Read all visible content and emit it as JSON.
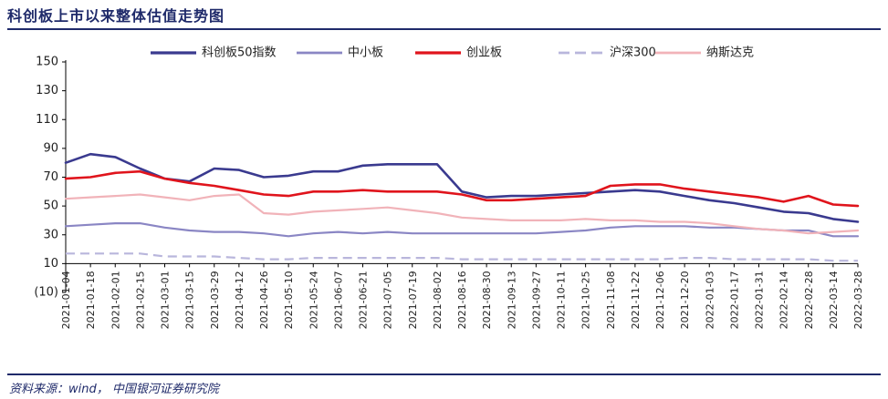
{
  "title": "科创板上市以来整体估值走势图",
  "source": "资料来源：wind， 中国银河证券研究院",
  "chart_data": {
    "type": "line",
    "ylim": [
      -10,
      150
    ],
    "yticks": [
      150,
      130,
      110,
      90,
      70,
      50,
      30,
      10,
      -10
    ],
    "ytick_labels": [
      "150",
      "130",
      "110",
      "90",
      "70",
      "50",
      "30",
      "10",
      "(10)"
    ],
    "legend_position": "top",
    "x_labels": [
      "2021-01-04",
      "2021-01-18",
      "2021-02-01",
      "2021-02-15",
      "2021-03-01",
      "2021-03-15",
      "2021-03-29",
      "2021-04-12",
      "2021-04-26",
      "2021-05-10",
      "2021-05-24",
      "2021-06-07",
      "2021-06-21",
      "2021-07-05",
      "2021-07-19",
      "2021-08-02",
      "2021-08-16",
      "2021-08-30",
      "2021-09-13",
      "2021-09-27",
      "2021-10-11",
      "2021-10-25",
      "2021-11-08",
      "2021-11-22",
      "2021-12-06",
      "2021-12-20",
      "2022-01-03",
      "2022-01-17",
      "2022-01-31",
      "2022-02-14",
      "2022-02-28",
      "2022-03-14",
      "2022-03-28"
    ],
    "series": [
      {
        "name": "科创板50指数",
        "color": "#3a3a8f",
        "dash": "solid",
        "width": 2.6,
        "values": [
          80,
          86,
          84,
          76,
          69,
          67,
          76,
          75,
          70,
          71,
          74,
          74,
          78,
          79,
          79,
          79,
          60,
          56,
          57,
          57,
          58,
          59,
          60,
          61,
          60,
          57,
          54,
          52,
          49,
          46,
          45,
          41,
          39
        ]
      },
      {
        "name": "中小板",
        "color": "#8a86c4",
        "dash": "solid",
        "width": 2.2,
        "values": [
          36,
          37,
          38,
          38,
          35,
          33,
          32,
          32,
          31,
          29,
          31,
          32,
          31,
          32,
          31,
          31,
          31,
          31,
          31,
          31,
          32,
          33,
          35,
          36,
          36,
          36,
          35,
          35,
          34,
          33,
          33,
          29,
          29
        ]
      },
      {
        "name": "创业板",
        "color": "#e0141c",
        "dash": "solid",
        "width": 2.6,
        "values": [
          69,
          70,
          73,
          74,
          69,
          66,
          64,
          61,
          58,
          57,
          60,
          60,
          61,
          60,
          60,
          60,
          58,
          54,
          54,
          55,
          56,
          57,
          64,
          65,
          65,
          62,
          60,
          58,
          56,
          53,
          57,
          51,
          50
        ]
      },
      {
        "name": "沪深300",
        "color": "#b9b6dc",
        "dash": "dashed",
        "width": 2.2,
        "values": [
          17,
          17,
          17,
          17,
          15,
          15,
          15,
          14,
          13,
          13,
          14,
          14,
          14,
          14,
          14,
          14,
          13,
          13,
          13,
          13,
          13,
          13,
          13,
          13,
          13,
          14,
          14,
          13,
          13,
          13,
          13,
          12,
          12
        ]
      },
      {
        "name": "纳斯达克",
        "color": "#f1b3b9",
        "dash": "solid",
        "width": 2.2,
        "values": [
          55,
          56,
          57,
          58,
          56,
          54,
          57,
          58,
          45,
          44,
          46,
          47,
          48,
          49,
          47,
          45,
          42,
          41,
          40,
          40,
          40,
          41,
          40,
          40,
          39,
          39,
          38,
          36,
          34,
          33,
          31,
          32,
          33
        ]
      }
    ]
  }
}
